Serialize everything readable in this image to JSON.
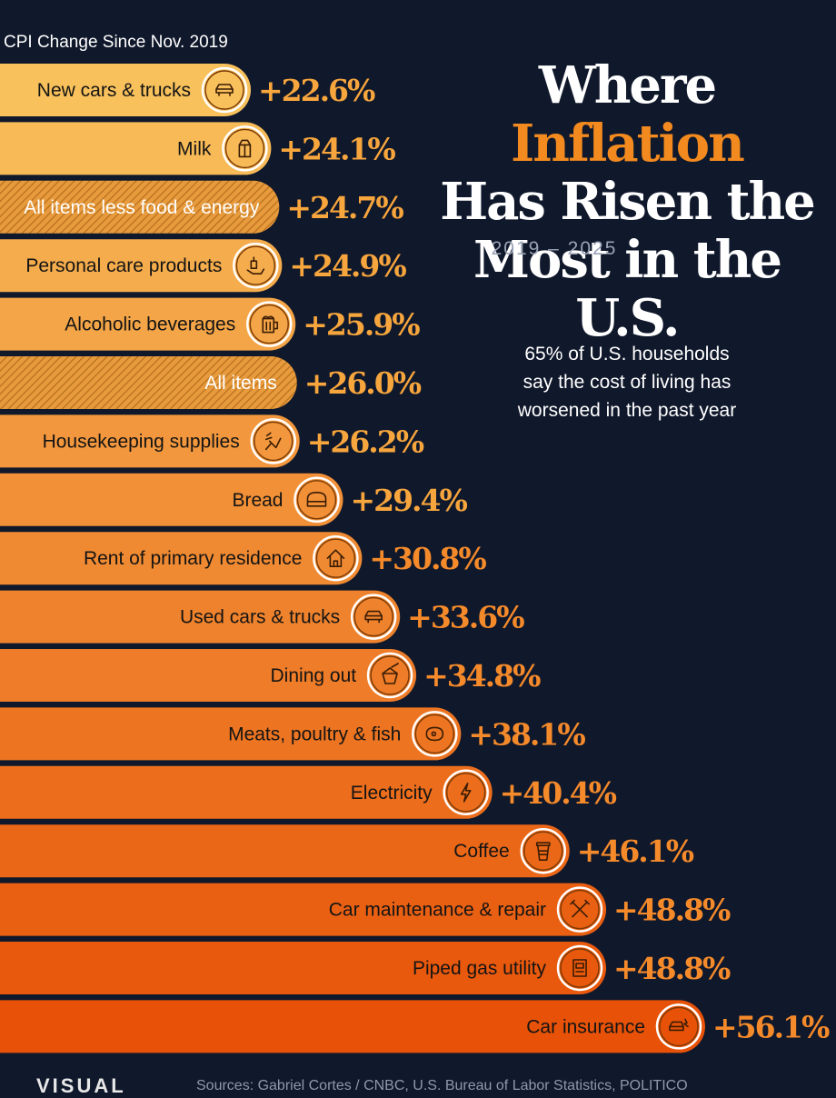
{
  "title": {
    "part1": "Where ",
    "highlight": "Inflation",
    "line2": "Has Risen the",
    "line3": "Most in the U.S."
  },
  "years": "2019 – 2025",
  "note": {
    "line1": "65% of U.S. households",
    "line2": "say the cost of living has",
    "line3": "worsened in the past year"
  },
  "sources": "Sources: Gabriel Cortes / CNBC, U.S. Bureau of Labor Statistics, POLITICO",
  "logo": "VISUAL",
  "colors": {
    "background": "#10182b",
    "bar_start": "#f8c15c",
    "bar_end": "#e85208",
    "value_text": "#f7a53d",
    "accent": "#f28a1f"
  },
  "chart_data": {
    "type": "bar",
    "orientation": "horizontal",
    "ylabel": "CPI Change Since Nov. 2019",
    "categories": [
      "New cars & trucks",
      "Milk",
      "All items less food & energy",
      "Personal care products",
      "Alcoholic beverages",
      "All items",
      "Housekeeping supplies",
      "Bread",
      "Rent of primary residence",
      "Used cars & trucks",
      "Dining out",
      "Meats, poultry & fish",
      "Electricity",
      "Coffee",
      "Car maintenance & repair",
      "Piped gas utility",
      "Car insurance"
    ],
    "values": [
      22.6,
      24.1,
      24.7,
      24.9,
      25.9,
      26.0,
      26.2,
      29.4,
      30.8,
      33.6,
      34.8,
      38.1,
      40.4,
      46.1,
      48.8,
      48.8,
      56.1
    ],
    "value_labels": [
      "+22.6%",
      "+24.1%",
      "+24.7%",
      "+24.9%",
      "+25.9%",
      "+26.0%",
      "+26.2%",
      "+29.4%",
      "+30.8%",
      "+33.6%",
      "+34.8%",
      "+38.1%",
      "+40.4%",
      "+46.1%",
      "+48.8%",
      "+48.8%",
      "+56.1%"
    ],
    "icons": [
      "car-icon",
      "milk-carton-icon",
      "",
      "soap-hand-icon",
      "beer-mug-icon",
      "",
      "cleaning-brush-icon",
      "bread-icon",
      "house-icon",
      "car-icon",
      "takeout-box-icon",
      "steak-icon",
      "lightning-icon",
      "coffee-cup-icon",
      "wrench-hammer-icon",
      "gas-meter-icon",
      "car-crash-icon"
    ],
    "hatched": [
      false,
      false,
      true,
      false,
      false,
      true,
      false,
      false,
      false,
      false,
      false,
      false,
      false,
      false,
      false,
      false,
      false
    ],
    "grid": false,
    "legend": "none"
  }
}
